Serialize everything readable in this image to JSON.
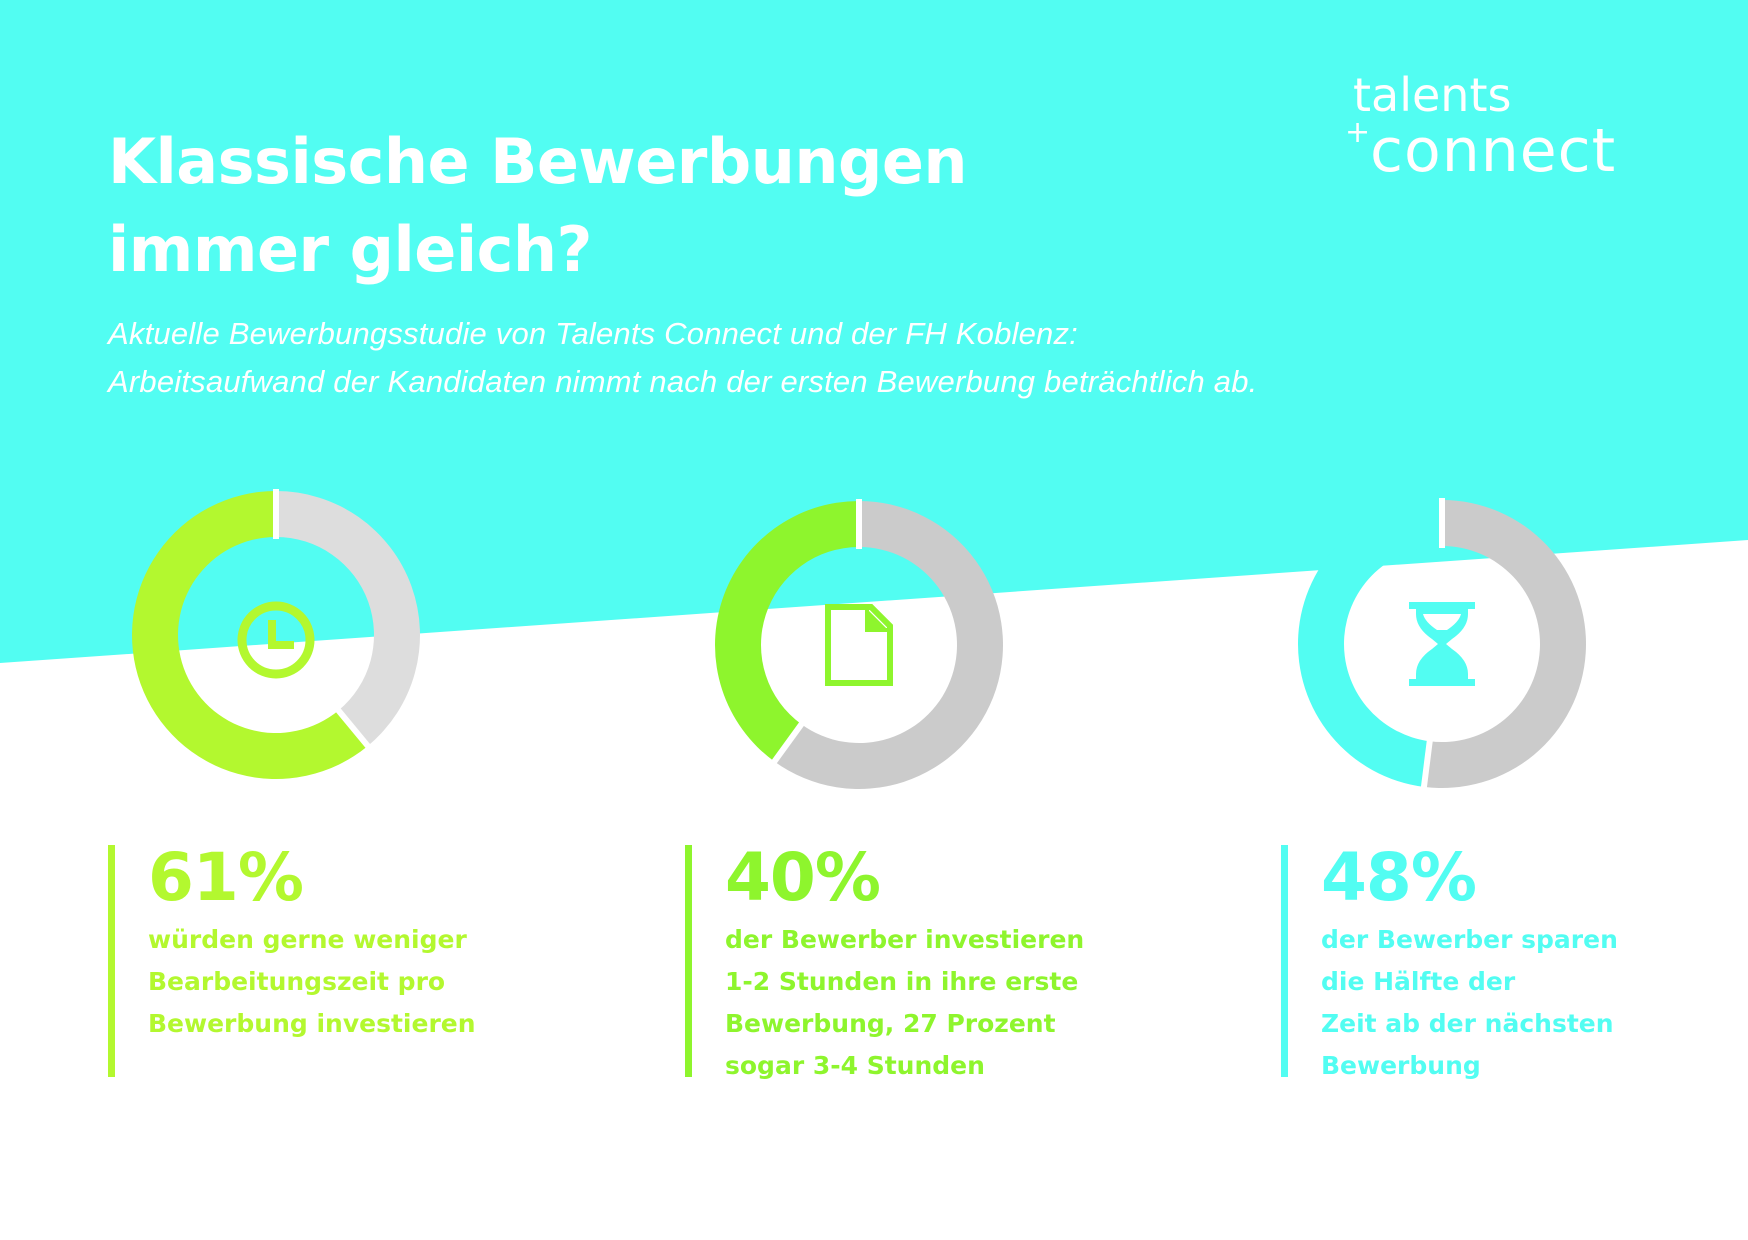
{
  "header": {
    "title_lines": [
      "Klassische Bewerbungen",
      "immer gleich?"
    ],
    "subtitle_lines": [
      "Aktuelle Bewerbungsstudie von Talents Connect und der FH Koblenz:",
      "Arbeitsaufwand der Kandidaten nimmt nach der ersten Bewerbung beträchtlich ab."
    ]
  },
  "logo": {
    "top": "talents",
    "plus": "+",
    "bottom": "connect"
  },
  "colors": {
    "background_cyan": "#52fdf2",
    "green_1": "#b3f82f",
    "green_2": "#8ef52d",
    "cyan": "#52fdf2",
    "gray_light": "#dddddd",
    "gray": "#cbcbcb",
    "white": "#ffffff"
  },
  "chart_data": [
    {
      "type": "pie",
      "variant": "donut",
      "icon": "clock-icon",
      "values": [
        61,
        39
      ],
      "value_label": "61%",
      "description_lines": [
        "würden gerne weniger",
        "Bearbeitungszeit pro",
        "Bewerbung investieren"
      ],
      "color": "#b3f82f",
      "rest_color": "#dddddd"
    },
    {
      "type": "pie",
      "variant": "donut",
      "icon": "document-icon",
      "values": [
        40,
        60
      ],
      "value_label": "40%",
      "description_lines": [
        "der Bewerber investieren",
        "1-2 Stunden in ihre erste",
        "Bewerbung, 27 Prozent",
        "sogar 3-4 Stunden"
      ],
      "color": "#8ef52d",
      "rest_color": "#cbcbcb"
    },
    {
      "type": "pie",
      "variant": "donut",
      "icon": "hourglass-icon",
      "values": [
        48,
        52
      ],
      "value_label": "48%",
      "description_lines": [
        "der Bewerber sparen",
        "die Hälfte der",
        "Zeit ab der nächsten",
        "Bewerbung"
      ],
      "color": "#52fdf2",
      "rest_color": "#cbcbcb"
    }
  ]
}
